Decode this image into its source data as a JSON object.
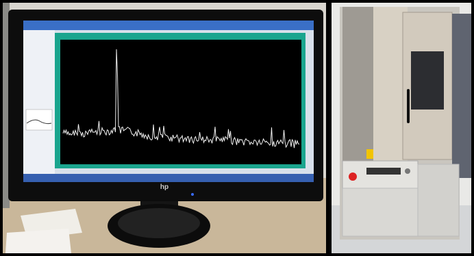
{
  "monitor": {
    "logo": "hp"
  }
}
